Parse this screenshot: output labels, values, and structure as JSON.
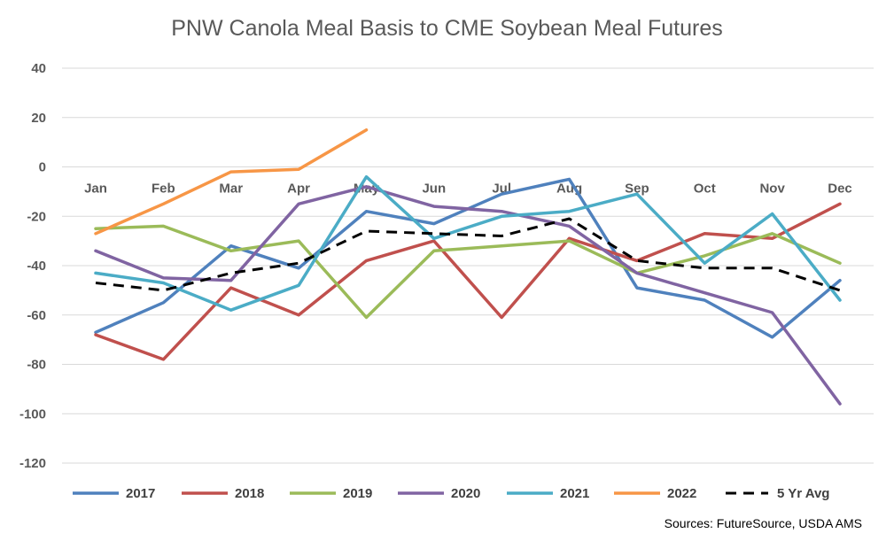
{
  "chart_data": {
    "type": "line",
    "title": "PNW Canola Meal Basis to CME Soybean Meal Futures",
    "source": "Sources: FutureSource, USDA AMS",
    "categories": [
      "Jan",
      "Feb",
      "Mar",
      "Apr",
      "May",
      "Jun",
      "Jul",
      "Aug",
      "Sep",
      "Oct",
      "Nov",
      "Dec"
    ],
    "ylim": [
      -120,
      40
    ],
    "yticks": [
      "40",
      "20",
      "0",
      "-20",
      "-40",
      "-60",
      "-80",
      "-100",
      "-120"
    ],
    "ytick_values": [
      40,
      20,
      0,
      -20,
      -40,
      -60,
      -80,
      -100,
      -120
    ],
    "grid": true,
    "legend_position": "bottom",
    "series": [
      {
        "name": "2017",
        "color": "#4f81bd",
        "dash": false,
        "values": [
          -67,
          -55,
          -32,
          -41,
          -18,
          -23,
          -11,
          -5,
          -49,
          -54,
          -69,
          -46
        ]
      },
      {
        "name": "2018",
        "color": "#c0504d",
        "dash": false,
        "values": [
          -68,
          -78,
          -49,
          -60,
          -38,
          -30,
          -61,
          -29,
          -38,
          -27,
          -29,
          -15
        ]
      },
      {
        "name": "2019",
        "color": "#9bbb59",
        "dash": false,
        "values": [
          -25,
          -24,
          -34,
          -30,
          -61,
          -34,
          -32,
          -30,
          -43,
          -36,
          -27,
          -39
        ]
      },
      {
        "name": "2020",
        "color": "#8064a2",
        "dash": false,
        "values": [
          -34,
          -45,
          -46,
          -15,
          -8,
          -16,
          -18,
          -24,
          -43,
          -51,
          -59,
          -96
        ]
      },
      {
        "name": "2021",
        "color": "#4bacc6",
        "dash": false,
        "values": [
          -43,
          -47,
          -58,
          -48,
          -4,
          -29,
          -20,
          -18,
          -11,
          -39,
          -19,
          -54
        ]
      },
      {
        "name": "2022",
        "color": "#f79646",
        "dash": false,
        "values": [
          -27,
          -15,
          -2,
          -1,
          15,
          null,
          null,
          null,
          null,
          null,
          null,
          null
        ]
      },
      {
        "name": "5 Yr Avg",
        "color": "#000000",
        "dash": true,
        "values": [
          -47,
          -50,
          -43,
          -39,
          -26,
          -27,
          -28,
          -21,
          -38,
          -41,
          -41,
          -50
        ]
      }
    ]
  }
}
